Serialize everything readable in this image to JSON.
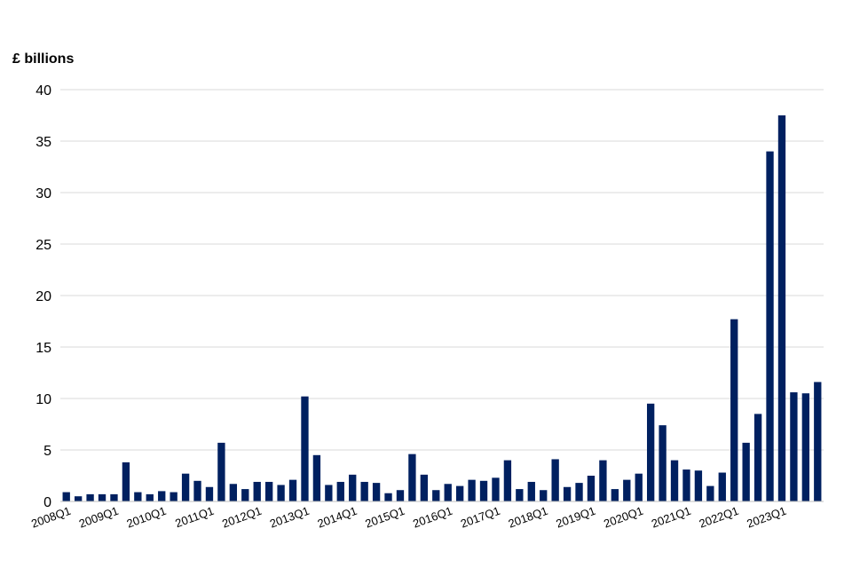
{
  "chart_data": {
    "type": "bar",
    "ylabel": "£ billions",
    "ylim": [
      0,
      40
    ],
    "yticks": [
      "0",
      "5",
      "10",
      "15",
      "20",
      "25",
      "30",
      "35",
      "40"
    ],
    "grid": true,
    "bar_color": "#002060",
    "categories": [
      "2008Q1",
      "2008Q2",
      "2008Q3",
      "2008Q4",
      "2009Q1",
      "2009Q2",
      "2009Q3",
      "2009Q4",
      "2010Q1",
      "2010Q2",
      "2010Q3",
      "2010Q4",
      "2011Q1",
      "2011Q2",
      "2011Q3",
      "2011Q4",
      "2012Q1",
      "2012Q2",
      "2012Q3",
      "2012Q4",
      "2013Q1",
      "2013Q2",
      "2013Q3",
      "2013Q4",
      "2014Q1",
      "2014Q2",
      "2014Q3",
      "2014Q4",
      "2015Q1",
      "2015Q2",
      "2015Q3",
      "2015Q4",
      "2016Q1",
      "2016Q2",
      "2016Q3",
      "2016Q4",
      "2017Q1",
      "2017Q2",
      "2017Q3",
      "2017Q4",
      "2018Q1",
      "2018Q2",
      "2018Q3",
      "2018Q4",
      "2019Q1",
      "2019Q2",
      "2019Q3",
      "2019Q4",
      "2020Q1",
      "2020Q2",
      "2020Q3",
      "2020Q4",
      "2021Q1",
      "2021Q2",
      "2021Q3",
      "2021Q4",
      "2022Q1",
      "2022Q2",
      "2022Q3",
      "2022Q4",
      "2023Q1",
      "2023Q2",
      "2023Q3",
      "2023Q4"
    ],
    "values": [
      0.9,
      0.5,
      0.7,
      0.7,
      0.7,
      3.8,
      0.9,
      0.7,
      1.0,
      0.9,
      2.7,
      2.0,
      1.4,
      5.7,
      1.7,
      1.2,
      1.9,
      1.9,
      1.6,
      2.1,
      10.2,
      4.5,
      1.6,
      1.9,
      2.6,
      1.9,
      1.8,
      0.8,
      1.1,
      4.6,
      2.6,
      1.1,
      1.7,
      1.5,
      2.1,
      2.0,
      2.3,
      4.0,
      1.2,
      1.9,
      1.1,
      4.1,
      1.4,
      1.8,
      2.5,
      4.0,
      1.2,
      2.1,
      2.7,
      9.5,
      7.4,
      4.0,
      3.1,
      3.0,
      1.5,
      2.8,
      17.7,
      5.7,
      8.5,
      34.0,
      37.5,
      10.6,
      10.5,
      11.6
    ],
    "xtick_labels": [
      "2008Q1",
      "2009Q1",
      "2010Q1",
      "2011Q1",
      "2012Q1",
      "2013Q1",
      "2014Q1",
      "2015Q1",
      "2016Q1",
      "2017Q1",
      "2018Q1",
      "2019Q1",
      "2020Q1",
      "2021Q1",
      "2022Q1",
      "2023Q1"
    ]
  }
}
